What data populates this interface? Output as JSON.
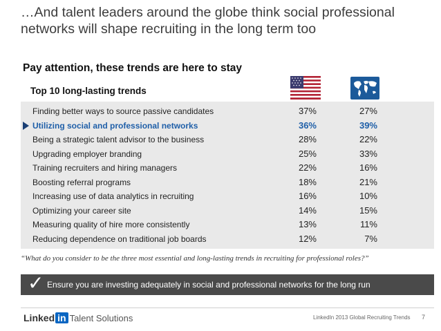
{
  "slide": {
    "title": "…And talent leaders around the globe think social professional networks will shape recruiting in the long term too",
    "subtitle": "Pay attention, these trends are here to stay",
    "section_label": "Top 10 long-lasting trends"
  },
  "columns": [
    {
      "icon": "us-flag-icon"
    },
    {
      "icon": "world-map-icon"
    }
  ],
  "trends": [
    {
      "label": "Finding better ways to source passive candidates",
      "us": "37%",
      "global": "27%"
    },
    {
      "label": "Utilizing social and professional networks",
      "us": "36%",
      "global": "39%",
      "highlight": true
    },
    {
      "label": "Being a strategic talent advisor to the business",
      "us": "28%",
      "global": "22%"
    },
    {
      "label": "Upgrading employer branding",
      "us": "25%",
      "global": "33%"
    },
    {
      "label": "Training recruiters and hiring managers",
      "us": "22%",
      "global": "16%"
    },
    {
      "label": "Boosting referral programs",
      "us": "18%",
      "global": "21%"
    },
    {
      "label": "Increasing use of data analytics in recruiting",
      "us": "16%",
      "global": "10%"
    },
    {
      "label": "Optimizing your career site",
      "us": "14%",
      "global": "15%"
    },
    {
      "label": "Measuring quality of hire more consistently",
      "us": "13%",
      "global": "11%"
    },
    {
      "label": "Reducing dependence on traditional job boards",
      "us": "12%",
      "global": "7%"
    }
  ],
  "quote": "“What do you consider to be the three most essential and long-lasting trends in recruiting for professional roles?”",
  "banner": {
    "check": "✓",
    "text": "Ensure you are investing adequately in social and professional networks for the long run"
  },
  "footer": {
    "logo_linked": "Linked",
    "logo_in": "in",
    "logo_product": "Talent Solutions",
    "source": "LinkedIn 2013 Global Recruiting Trends",
    "page": "7"
  },
  "colors": {
    "highlight": "#1f5fa8",
    "table_bg": "#e9e9e9",
    "banner_bg": "#4a4a4a",
    "arrow": "#1a3f74"
  }
}
